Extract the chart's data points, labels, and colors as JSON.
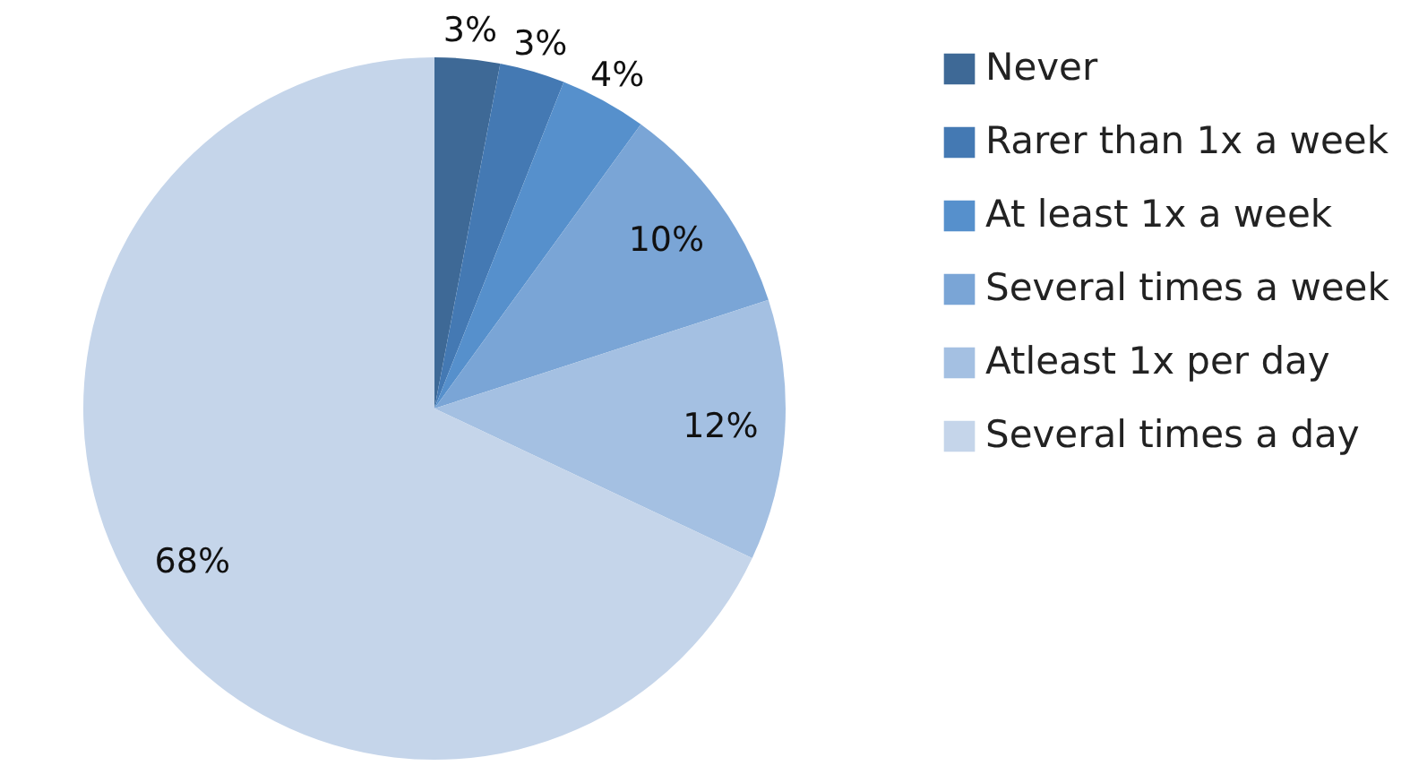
{
  "chart_data": {
    "type": "pie",
    "categories": [
      "Never",
      "Rarer than 1x a week",
      "At least 1x a week",
      "Several times a week",
      "Atleast 1x per day",
      "Several times a day"
    ],
    "values": [
      3,
      3,
      4,
      10,
      12,
      68
    ],
    "value_labels": [
      "3%",
      "3%",
      "4%",
      "10%",
      "12%",
      "68%"
    ],
    "colors": [
      "#3e6996",
      "#4479b3",
      "#5690cc",
      "#7aa5d6",
      "#a4c0e2",
      "#c5d5ea"
    ],
    "legend": "right"
  }
}
